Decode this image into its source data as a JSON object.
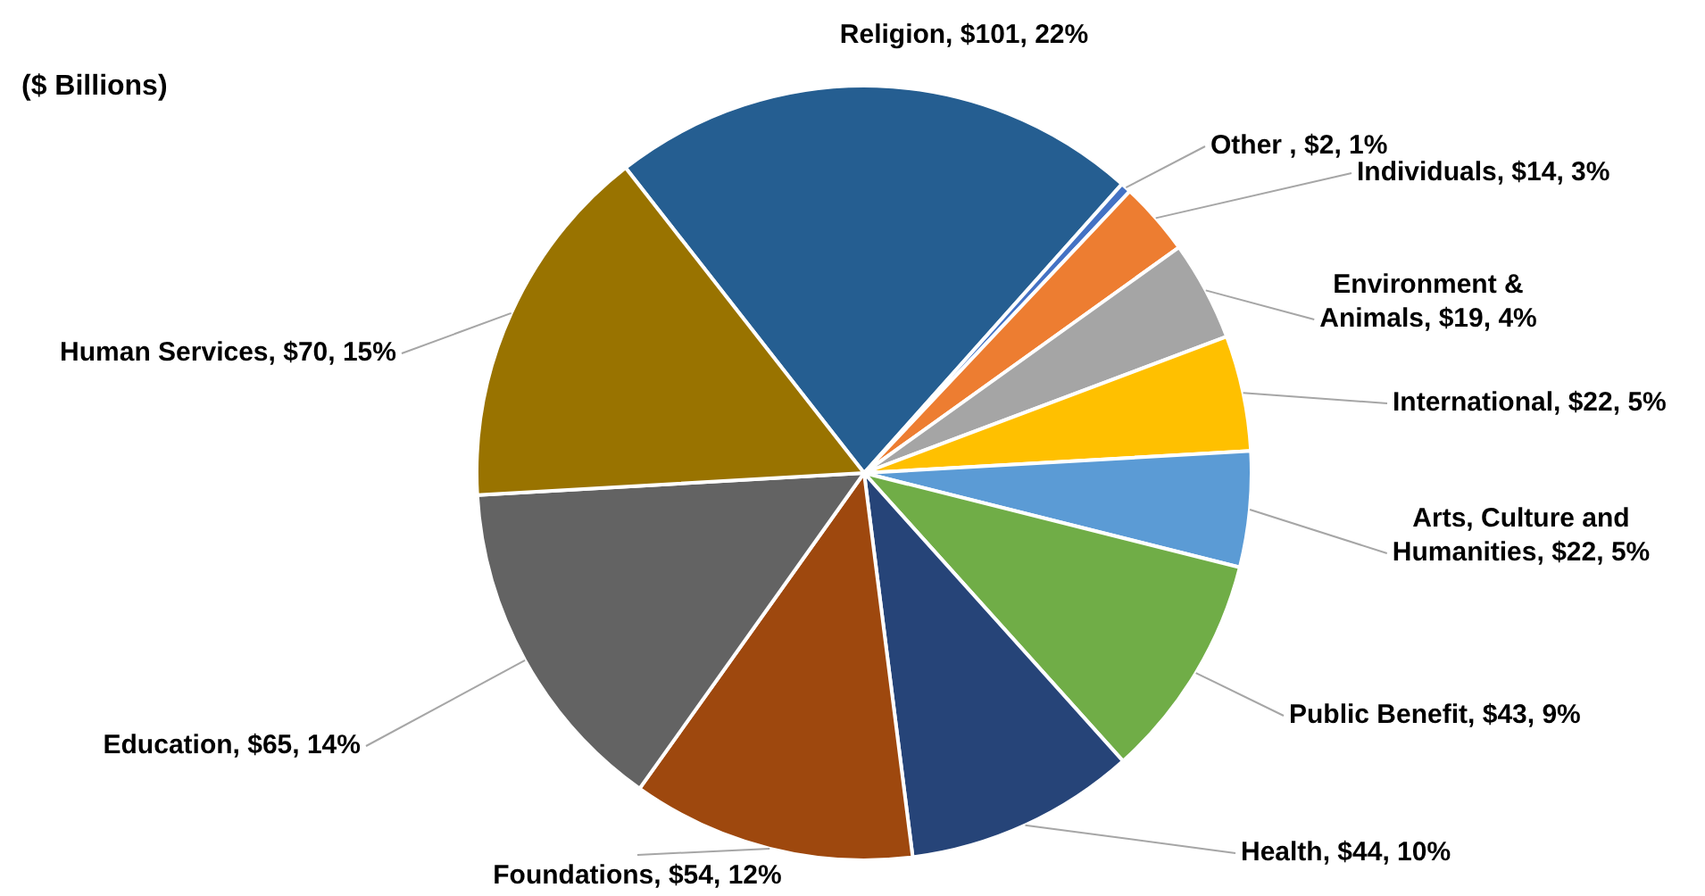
{
  "chart_data": {
    "type": "pie",
    "title": "($ Billions)",
    "categories": [
      "Religion",
      "Other ",
      "Individuals",
      "Environment & Animals",
      "International",
      "Arts, Culture and Humanities",
      "Public Benefit",
      "Health",
      "Foundations",
      "Education",
      "Human Services"
    ],
    "values": [
      101,
      2,
      14,
      19,
      22,
      22,
      43,
      44,
      54,
      65,
      70
    ],
    "colors": [
      "#255e91",
      "#4472c4",
      "#ed7d31",
      "#a5a5a5",
      "#ffc000",
      "#5b9bd5",
      "#70ad47",
      "#264478",
      "#9e480e",
      "#636363",
      "#997300"
    ],
    "value_labels": [
      "$101, 22%",
      "$2, 1%",
      "$14, 3%",
      "$19, 4%",
      "$22, 5%",
      "$22, 5%",
      "$43, 9%",
      "$44, 10%",
      "$54, 12%",
      "$65, 14%",
      "$70, 15%"
    ]
  }
}
